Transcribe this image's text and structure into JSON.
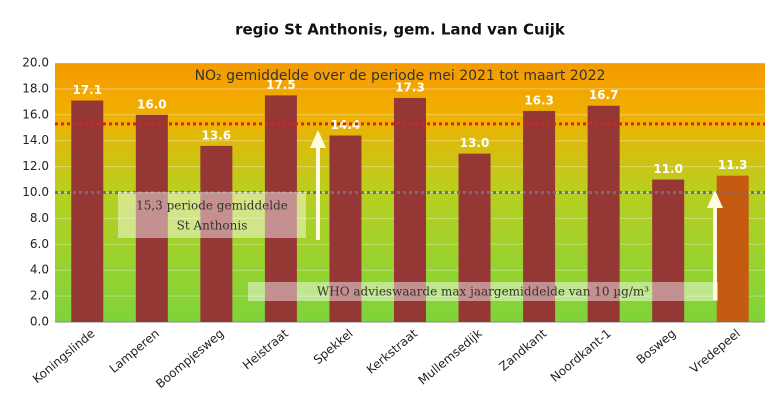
{
  "chart_data": {
    "type": "bar",
    "title": "regio St Anthonis, gem. Land van Cuijk",
    "subtitle": "NO₂ gemiddelde over de periode mei 2021 tot maart 2022",
    "categories": [
      "Koningslinde",
      "Lamperen",
      "Boompjesweg",
      "Heistraat",
      "Spekkel",
      "Kerkstraat",
      "Mullemsedijk",
      "Zandkant",
      "Noordkant-1",
      "Bosweg",
      "Vredepeel"
    ],
    "values": [
      17.1,
      16.0,
      13.6,
      17.5,
      14.4,
      17.3,
      13.0,
      16.3,
      16.7,
      11.0,
      11.3
    ],
    "value_labels": [
      "17.1",
      "16.0",
      "13.6",
      "17.5",
      "14.4",
      "17.3",
      "13.0",
      "16.3",
      "16.7",
      "11.0",
      "11.3"
    ],
    "colors": [
      "#953735",
      "#953735",
      "#953735",
      "#953735",
      "#953735",
      "#953735",
      "#953735",
      "#953735",
      "#953735",
      "#953735",
      "#c55a11"
    ],
    "ylim": [
      0,
      20
    ],
    "yticks": [
      {
        "value": 0,
        "label": "0.0"
      },
      {
        "value": 2,
        "label": "2.0"
      },
      {
        "value": 4,
        "label": "4.0"
      },
      {
        "value": 6,
        "label": "6.0"
      },
      {
        "value": 8,
        "label": "8.0"
      },
      {
        "value": 10,
        "label": "10.0"
      },
      {
        "value": 12,
        "label": "12.0"
      },
      {
        "value": 14,
        "label": "14.0"
      },
      {
        "value": 16,
        "label": "16.0"
      },
      {
        "value": 18,
        "label": "18.0"
      },
      {
        "value": 20,
        "label": "20.0"
      }
    ],
    "reference_lines": [
      {
        "value": 15.3,
        "color": "#e02020"
      },
      {
        "value": 10,
        "color": "#6f6f7f"
      }
    ],
    "annotations": [
      [
        "15,3 periode gemiddelde",
        "St Anthonis"
      ],
      [
        "WHO advieswaarde max jaargemiddelde van 10 µg/m³"
      ]
    ]
  }
}
